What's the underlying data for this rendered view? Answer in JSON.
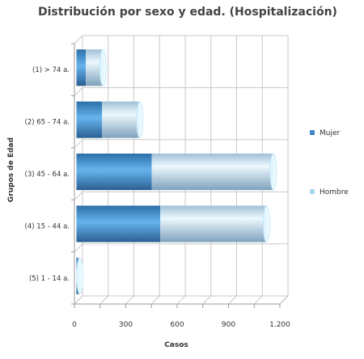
{
  "chart_data": {
    "type": "bar",
    "orientation": "horizontal",
    "stacked": true,
    "three_d": true,
    "title": "Distribución por sexo y edad. (Hospitalización)",
    "xlabel": "Casos",
    "ylabel": "Grupos de Edad",
    "categories": [
      "(1) > 74 a.",
      "(2) 65 - 74 a.",
      "(3) 45 - 64 a.",
      "(4) 15 - 44 a.",
      "(5) 1 - 14 a."
    ],
    "series": [
      {
        "name": "Mujer",
        "values": [
          55,
          150,
          440,
          490,
          10
        ],
        "color": "#3f87c4"
      },
      {
        "name": "Hombre",
        "values": [
          100,
          220,
          710,
          620,
          10
        ],
        "color": "#a8d8f0"
      }
    ],
    "xlim": [
      0,
      1200
    ],
    "xticks": [
      0,
      300,
      600,
      900,
      1200
    ],
    "xtick_labels": [
      "0",
      "300",
      "600",
      "900",
      "1.200"
    ],
    "grid": true,
    "legend_position": "right"
  }
}
